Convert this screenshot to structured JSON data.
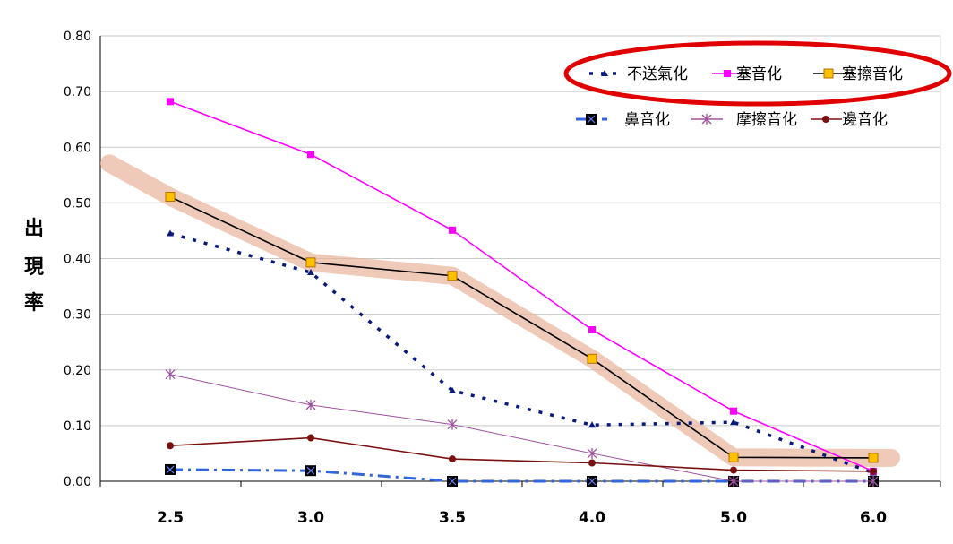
{
  "chart_data": {
    "type": "line",
    "title": "",
    "xlabel": "",
    "ylabel": [
      "出",
      "現",
      "率"
    ],
    "categories": [
      "2.5",
      "3.0",
      "3.5",
      "4.0",
      "5.0",
      "6.0"
    ],
    "ylim": [
      0,
      0.8
    ],
    "yticks": [
      "0.00",
      "0.10",
      "0.20",
      "0.30",
      "0.40",
      "0.50",
      "0.60",
      "0.70",
      "0.80"
    ],
    "grid": "horizontal",
    "legend_position": "top-right",
    "series": [
      {
        "name": "不送氣化",
        "color": "#0a1a7a",
        "style": "dotted",
        "marker": "triangle",
        "values": [
          0.445,
          0.375,
          0.163,
          0.101,
          0.106,
          0.015
        ]
      },
      {
        "name": "塞音化",
        "color": "#ff00ff",
        "style": "solid",
        "marker": "square",
        "values": [
          0.682,
          0.587,
          0.451,
          0.272,
          0.126,
          0.018
        ]
      },
      {
        "name": "塞擦音化",
        "color": "#000000",
        "style": "solid",
        "marker": "square-yellow",
        "values": [
          0.511,
          0.393,
          0.369,
          0.22,
          0.043,
          0.042
        ]
      },
      {
        "name": "鼻音化",
        "color": "#3366dd",
        "style": "dashdot",
        "marker": "square-black-x",
        "values": [
          0.021,
          0.019,
          0.0,
          0.0,
          0.0,
          0.0
        ]
      },
      {
        "name": "摩擦音化",
        "color": "#a050a0",
        "style": "solid",
        "marker": "star",
        "values": [
          0.192,
          0.137,
          0.102,
          0.05,
          0.0,
          0.0
        ]
      },
      {
        "name": "邊音化",
        "color": "#7a1010",
        "style": "solid",
        "marker": "circle",
        "values": [
          0.064,
          0.078,
          0.04,
          0.033,
          0.02,
          0.018
        ]
      }
    ],
    "annotations": {
      "highlight_series": "塞擦音化",
      "highlight_color": "#e8b49a",
      "legend_ellipse_color": "#e00000"
    }
  }
}
